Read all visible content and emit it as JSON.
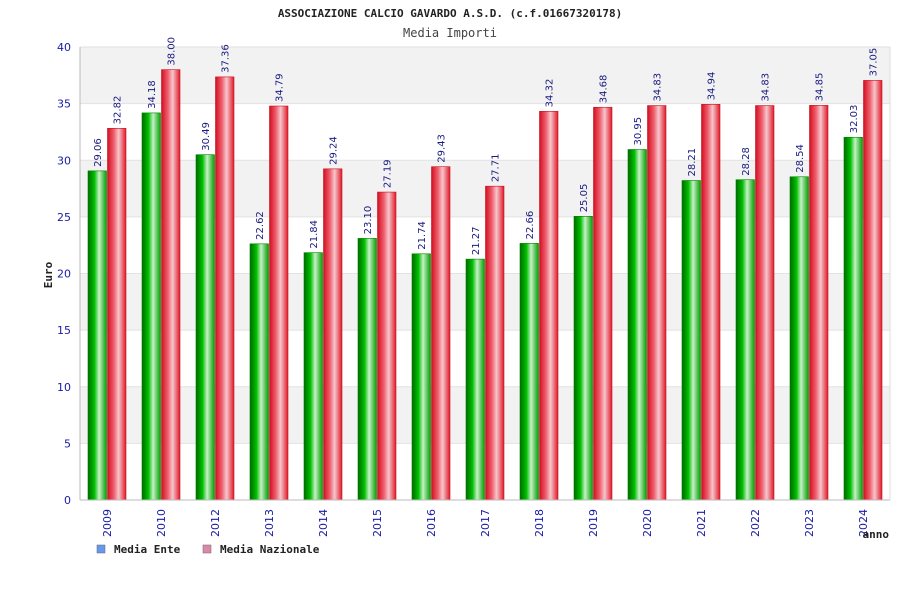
{
  "chart_data": {
    "type": "bar",
    "title": "ASSOCIAZIONE CALCIO GAVARDO A.S.D. (c.f.01667320178)",
    "subtitle": "Media Importi",
    "ylabel": "Euro",
    "xlabel": "anno",
    "ylim": [
      0,
      40
    ],
    "yticks": [
      0,
      5,
      10,
      15,
      20,
      25,
      30,
      35,
      40
    ],
    "grid": true,
    "legend_position": "bottom-left",
    "categories": [
      "2009",
      "2010",
      "2012",
      "2013",
      "2014",
      "2015",
      "2016",
      "2017",
      "2018",
      "2019",
      "2020",
      "2021",
      "2022",
      "2023",
      "2024"
    ],
    "series": [
      {
        "name": "Media Ente",
        "color": "#00aa00",
        "legend_color": "#6699ee",
        "values": [
          29.06,
          34.18,
          30.49,
          22.62,
          21.84,
          23.1,
          21.74,
          21.27,
          22.66,
          25.05,
          30.95,
          28.21,
          28.28,
          28.54,
          32.03
        ],
        "labels": [
          "29.06",
          "34.18",
          "30.49",
          "22.62",
          "21.84",
          "23.10",
          "21.74",
          "21.27",
          "22.66",
          "25.05",
          "30.95",
          "28.21",
          "28.28",
          "28.54",
          "32.03"
        ]
      },
      {
        "name": "Media Nazionale",
        "color": "#ee2233",
        "legend_color": "#dd88aa",
        "values": [
          32.82,
          38.0,
          37.36,
          34.79,
          29.24,
          27.19,
          29.43,
          27.71,
          34.32,
          34.68,
          34.83,
          34.94,
          34.83,
          34.85,
          37.05
        ],
        "labels": [
          "32.82",
          "38.00",
          "37.36",
          "34.79",
          "29.24",
          "27.19",
          "29.43",
          "27.71",
          "34.32",
          "34.68",
          "34.83",
          "34.94",
          "34.83",
          "34.85",
          "37.05"
        ]
      }
    ]
  }
}
